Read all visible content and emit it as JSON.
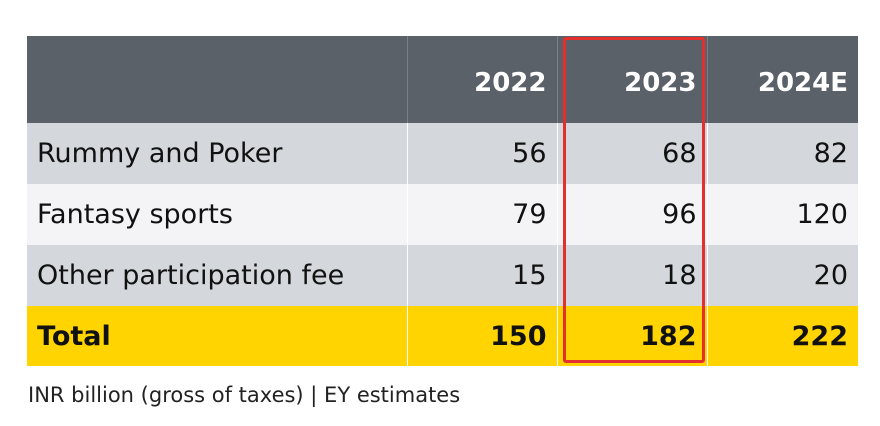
{
  "chart_data": {
    "type": "table",
    "columns": [
      "",
      "2022",
      "2023",
      "2024E"
    ],
    "rows": [
      {
        "label": "Rummy and Poker",
        "values": [
          "56",
          "68",
          "82"
        ]
      },
      {
        "label": "Fantasy sports",
        "values": [
          "79",
          "96",
          "120"
        ]
      },
      {
        "label": "Other participation fee",
        "values": [
          "15",
          "18",
          "20"
        ]
      },
      {
        "label": "Total",
        "values": [
          "150",
          "182",
          "222"
        ]
      }
    ],
    "highlighted_column": "2023",
    "caption": "INR billion (gross of taxes) | EY estimates"
  },
  "colors": {
    "header_bg": "#5a6169",
    "row_shade": "#d4d7db",
    "row_light": "#f4f4f6",
    "total_bg": "#ffd400",
    "highlight_border": "#e3302c"
  }
}
